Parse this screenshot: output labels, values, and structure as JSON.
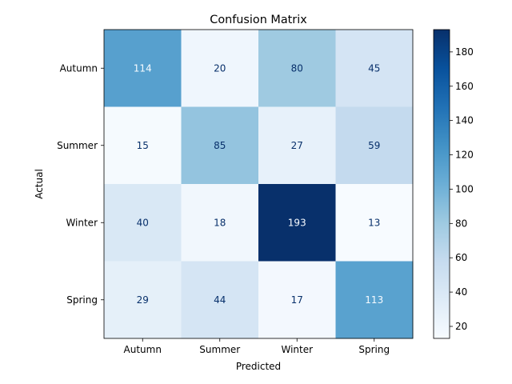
{
  "chart_data": {
    "type": "heatmap",
    "title": "Confusion Matrix",
    "xlabel": "Predicted",
    "ylabel": "Actual",
    "x_categories": [
      "Autumn",
      "Summer",
      "Winter",
      "Spring"
    ],
    "y_categories": [
      "Autumn",
      "Summer",
      "Winter",
      "Spring"
    ],
    "values": [
      [
        114,
        20,
        80,
        45
      ],
      [
        15,
        85,
        27,
        59
      ],
      [
        40,
        18,
        193,
        13
      ],
      [
        29,
        44,
        17,
        113
      ]
    ],
    "colormap": "Blues",
    "colorbar": {
      "min": 13,
      "max": 193,
      "ticks": [
        20,
        40,
        60,
        80,
        100,
        120,
        140,
        160,
        180
      ]
    }
  }
}
